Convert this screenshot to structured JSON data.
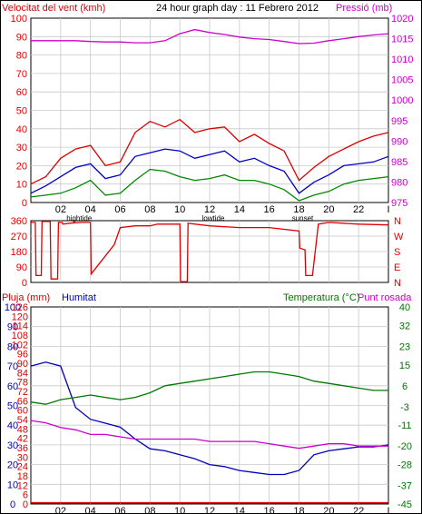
{
  "header": {
    "wind_label": "Velocitat del vent (kmh)",
    "title": "24 hour graph day : 11 Febrero 2012",
    "pressure_label": "Pressió (mb)"
  },
  "dir_labels": [
    "N",
    "W",
    "S",
    "E",
    "N"
  ],
  "bottom_labels": {
    "rain": "Pluja (mm)",
    "humidity": "Humitat",
    "temperature": "Temperatura (°C)",
    "dewpoint": "Punt rosada"
  },
  "time_ticks": [
    "02",
    "04",
    "06",
    "08",
    "10",
    "12",
    "14",
    "16",
    "18",
    "20",
    "22",
    "I"
  ],
  "events": [
    "hightide",
    "lowtide",
    "sunset"
  ],
  "colors": {
    "wind_gust": "#dd0000",
    "wind_avg": "#0000cc",
    "wind_min": "#008800",
    "pressure": "#cc00cc",
    "direction": "#dd0000",
    "humidity": "#0000bb",
    "temperature": "#007700",
    "dewpoint": "#cc00cc",
    "rain": "#dd0000",
    "grid": "#c8c8c8"
  },
  "chart_data": [
    {
      "type": "line",
      "ylabel": "Velocitat del vent (kmh)",
      "y2label": "Pressió (mb)",
      "x_hours": [
        0,
        1,
        2,
        3,
        4,
        5,
        6,
        7,
        8,
        9,
        10,
        11,
        12,
        13,
        14,
        15,
        16,
        17,
        18,
        19,
        20,
        21,
        22,
        23,
        24
      ],
      "ylim": [
        0,
        100
      ],
      "y_ticks": [
        0,
        10,
        20,
        30,
        40,
        50,
        60,
        70,
        80,
        90,
        100
      ],
      "y2lim": [
        975,
        1020
      ],
      "y2_ticks": [
        975,
        980,
        985,
        990,
        995,
        1000,
        1005,
        1010,
        1015,
        1020
      ],
      "series": [
        {
          "key": "wind_gust",
          "values": [
            10,
            14,
            24,
            29,
            31,
            20,
            22,
            38,
            44,
            41,
            45,
            38,
            40,
            41,
            33,
            37,
            32,
            28,
            12,
            19,
            25,
            29,
            33,
            36,
            38
          ]
        },
        {
          "key": "wind_avg",
          "values": [
            5,
            9,
            14,
            19,
            21,
            13,
            15,
            25,
            27,
            29,
            28,
            24,
            26,
            28,
            22,
            24,
            20,
            17,
            5,
            11,
            15,
            20,
            21,
            22,
            25
          ]
        },
        {
          "key": "wind_min",
          "values": [
            3,
            4,
            5,
            8,
            12,
            4,
            5,
            12,
            18,
            17,
            14,
            12,
            13,
            15,
            12,
            12,
            10,
            7,
            1,
            4,
            6,
            10,
            12,
            13,
            14
          ]
        },
        {
          "key": "pressure",
          "axis": "right",
          "values": [
            1014.5,
            1014.5,
            1014.5,
            1014.5,
            1014.3,
            1014.2,
            1014.2,
            1014.0,
            1014.0,
            1014.5,
            1016.2,
            1017.2,
            1016.5,
            1016.0,
            1015.4,
            1015.0,
            1014.8,
            1014.3,
            1013.8,
            1013.9,
            1014.5,
            1015.0,
            1015.5,
            1015.9,
            1016.2
          ]
        }
      ]
    },
    {
      "type": "line",
      "ylabel": "N W S E N",
      "ylim": [
        0,
        360
      ],
      "y_ticks": [
        0,
        90,
        180,
        270,
        360
      ],
      "series": [
        {
          "key": "direction",
          "x_hours": [
            0,
            0.3,
            0.35,
            0.7,
            0.75,
            1.3,
            1.35,
            1.8,
            1.85,
            2.1,
            2.15,
            2.6,
            3.4,
            4.0,
            4.05,
            4.6,
            5.6,
            6.0,
            7.0,
            8.0,
            8.5,
            10.0,
            10.05,
            10.5,
            10.55,
            12.0,
            14.0,
            16.0,
            18.0,
            18.05,
            18.4,
            18.45,
            18.9,
            19.3,
            20.0,
            22.0,
            24.0
          ],
          "values": [
            350,
            350,
            40,
            40,
            355,
            355,
            20,
            20,
            350,
            350,
            340,
            345,
            350,
            350,
            50,
            110,
            220,
            320,
            330,
            330,
            340,
            340,
            5,
            5,
            345,
            330,
            320,
            320,
            300,
            200,
            190,
            40,
            40,
            340,
            350,
            340,
            335
          ]
        }
      ]
    },
    {
      "type": "line",
      "ylabel": "Pluja (mm)",
      "y2label": "Temperatura (°C)",
      "x_hours": [
        0,
        1,
        2,
        3,
        4,
        5,
        6,
        7,
        8,
        9,
        10,
        11,
        12,
        13,
        14,
        15,
        16,
        17,
        18,
        19,
        20,
        21,
        22,
        23,
        24
      ],
      "ylim": [
        0,
        100
      ],
      "y_ticks": [
        0,
        10,
        20,
        30,
        40,
        50,
        60,
        70,
        80,
        90,
        100
      ],
      "y_left_tick_labels": [
        "0",
        "6",
        "12",
        "18",
        "24",
        "30",
        "36",
        "42",
        "48",
        "54",
        "60",
        "66",
        "72",
        "78",
        "84",
        "90",
        "96",
        "102",
        "108",
        "114",
        "120",
        "126"
      ],
      "y2lim": [
        -45,
        40
      ],
      "y2_ticks": [
        -45,
        -37,
        -28,
        -20,
        -11,
        -3,
        6,
        15,
        23,
        32,
        40
      ],
      "series": [
        {
          "key": "humidity",
          "values": [
            70,
            72,
            70,
            49,
            43,
            41,
            39,
            33,
            28,
            27,
            25,
            23,
            20,
            19,
            17,
            16,
            15,
            15,
            17,
            25,
            27,
            28,
            29,
            29,
            30
          ]
        },
        {
          "key": "temperature",
          "axis": "right",
          "values": [
            -1,
            -2,
            0,
            1,
            2,
            1,
            0,
            1,
            3,
            6,
            7,
            8,
            9,
            10,
            11,
            12,
            12,
            11,
            10,
            8,
            7,
            6,
            5,
            4,
            4
          ]
        },
        {
          "key": "dewpoint",
          "axis": "right",
          "values": [
            -9,
            -10,
            -12,
            -13,
            -15,
            -15,
            -16,
            -17,
            -17,
            -17,
            -17,
            -17,
            -18,
            -18,
            -18,
            -18,
            -19,
            -20,
            -21,
            -20,
            -19,
            -19,
            -20,
            -20,
            -20
          ]
        },
        {
          "key": "rain",
          "values": [
            0.6,
            0.6,
            0.6,
            0.6,
            0.6,
            0.6,
            0.6,
            0.6,
            0.6,
            0.6,
            0.6,
            0.6,
            0.6,
            0.6,
            0.6,
            0.6,
            0.6,
            0.6,
            0.6,
            0.6,
            0.6,
            0.6,
            0.6,
            0.6,
            0.6
          ]
        }
      ]
    }
  ]
}
